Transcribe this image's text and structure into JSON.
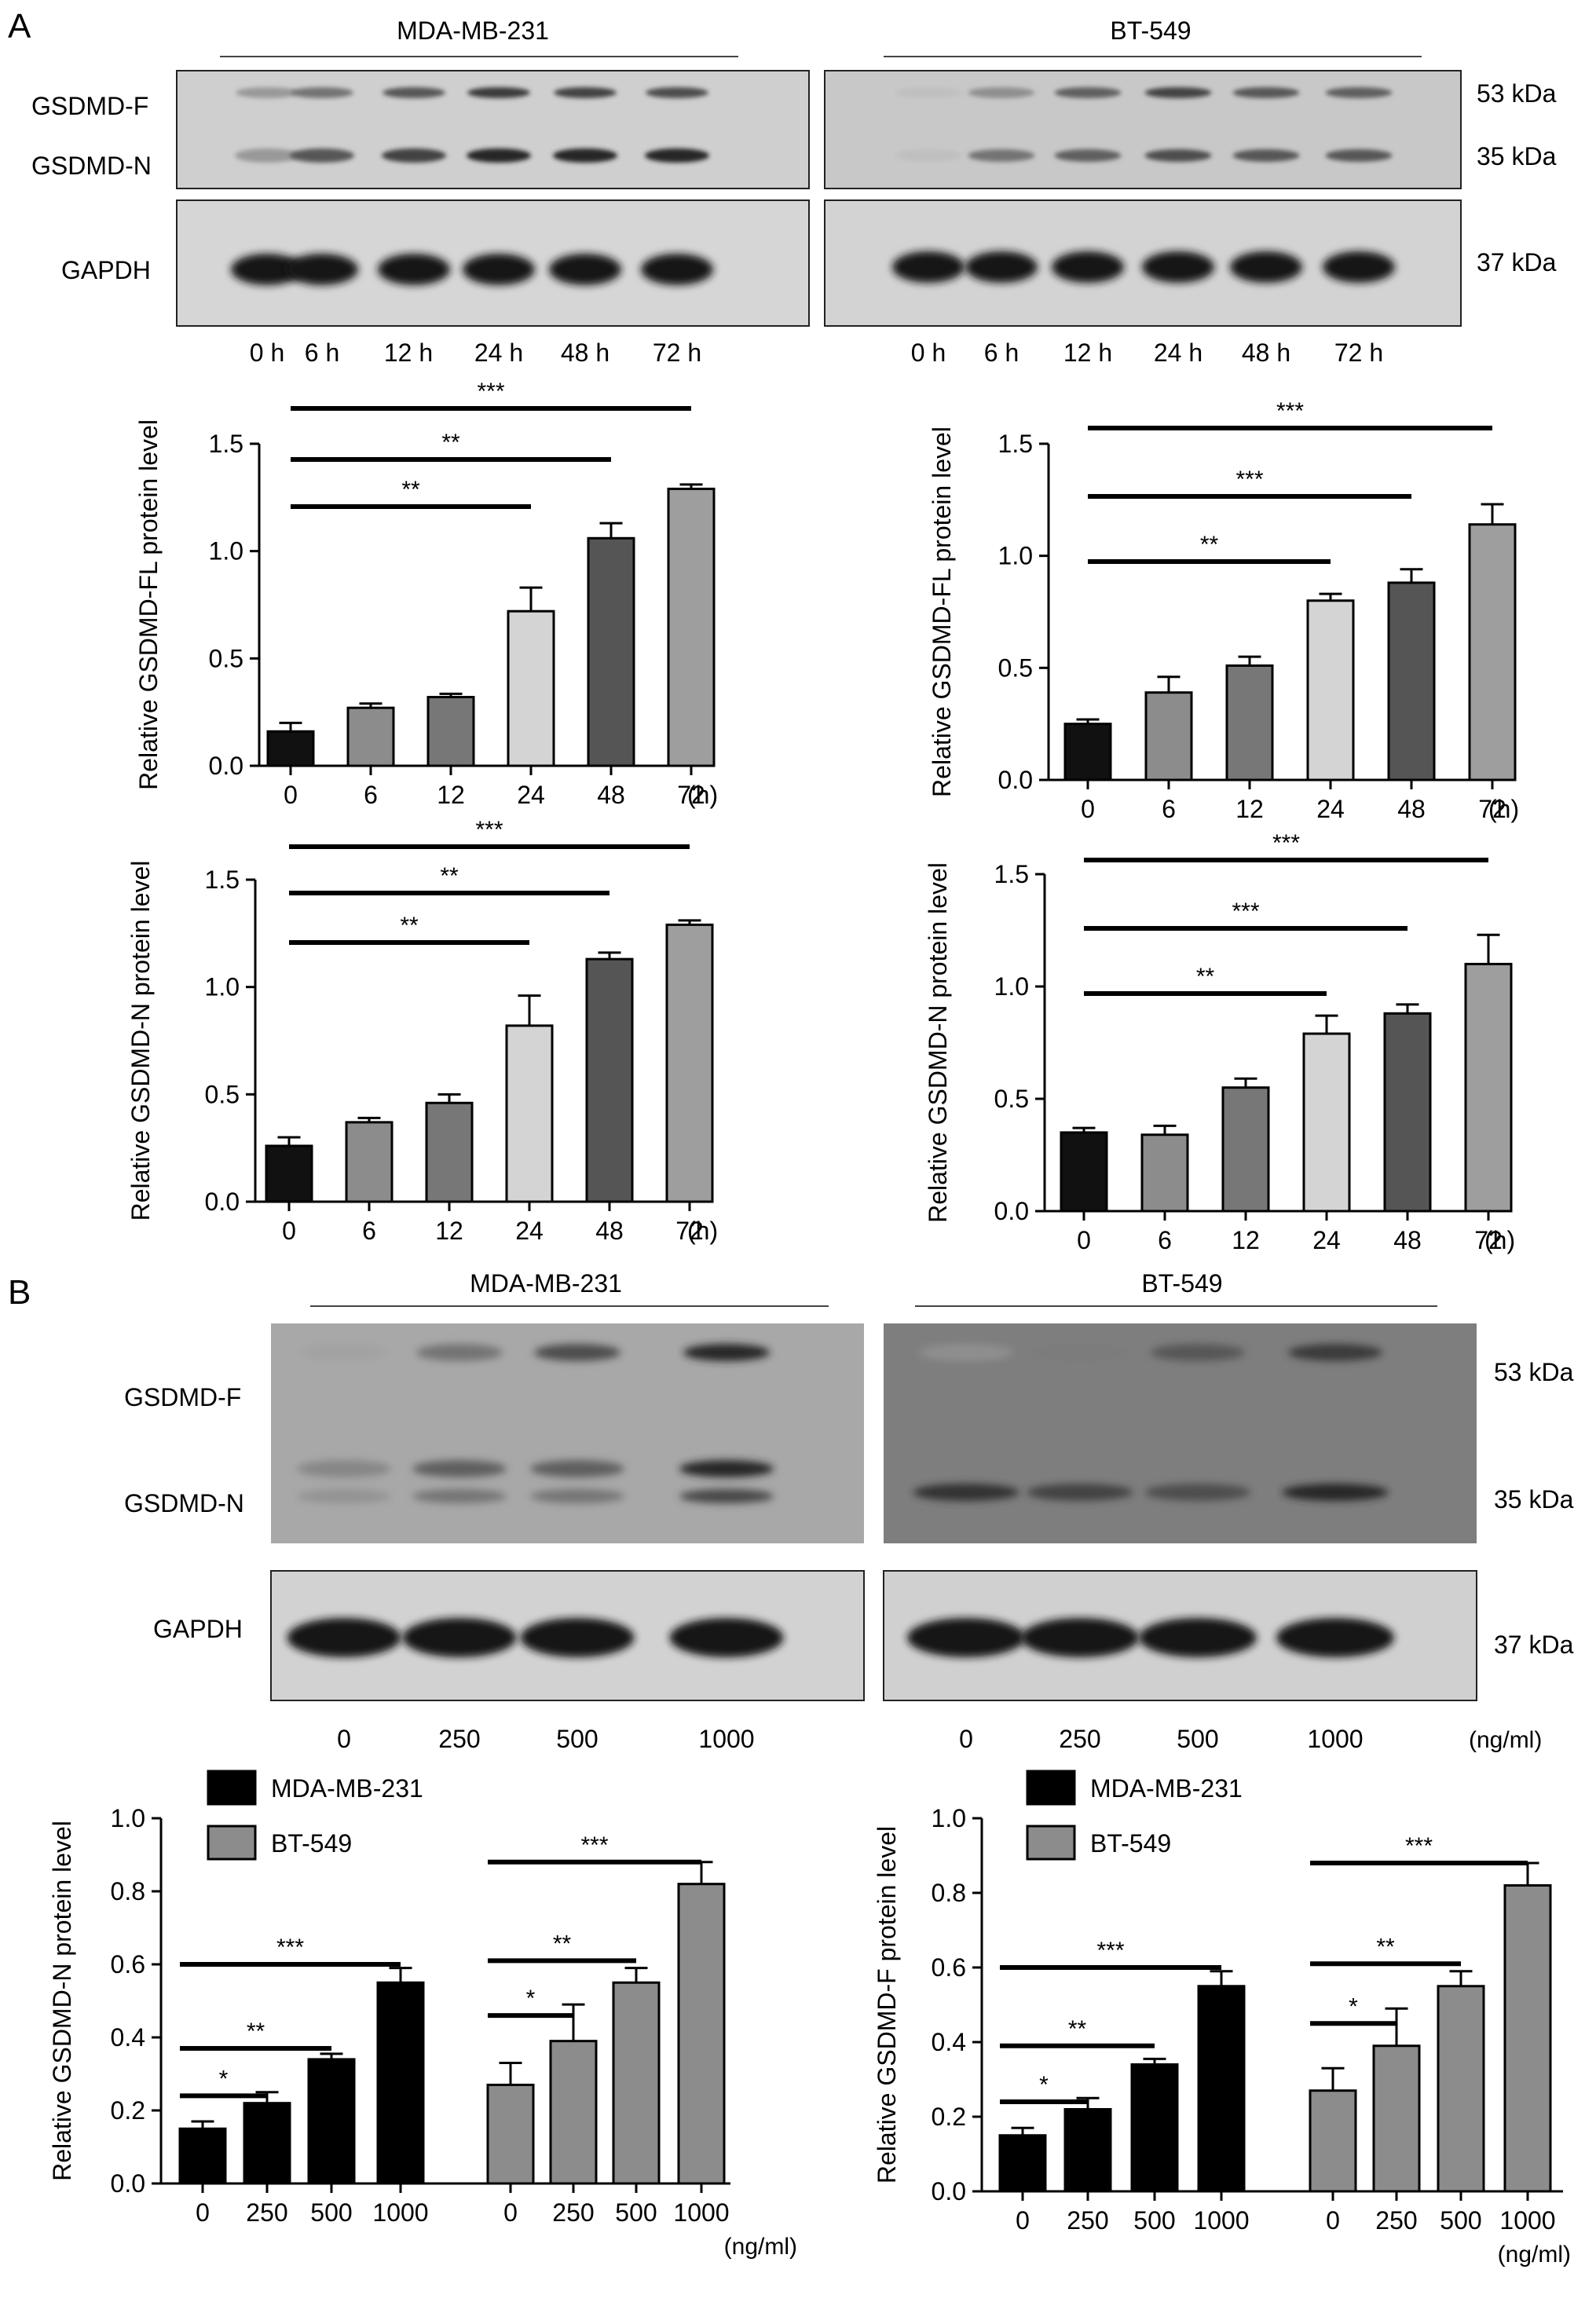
{
  "panel_a": {
    "label": "A",
    "blot": {
      "left_cell_line": "MDA-MB-231",
      "right_cell_line": "BT-549",
      "band_labels": [
        "GSDMD-F",
        "GSDMD-N",
        "GAPDH"
      ],
      "kda_labels": [
        "53 kDa",
        "35 kDa",
        "37 kDa"
      ],
      "lanes": [
        "0 h",
        "6 h",
        "12 h",
        "24 h",
        "48 h",
        "72 h"
      ],
      "left_intensity": {
        "f": [
          0.25,
          0.45,
          0.6,
          0.75,
          0.7,
          0.65
        ],
        "n": [
          0.25,
          0.6,
          0.7,
          0.85,
          0.85,
          0.85
        ],
        "gapdh": [
          0.95,
          0.95,
          0.95,
          0.95,
          0.95,
          0.95
        ]
      },
      "right_intensity": {
        "f": [
          0.05,
          0.3,
          0.55,
          0.7,
          0.6,
          0.55
        ],
        "n": [
          0.05,
          0.45,
          0.55,
          0.65,
          0.6,
          0.6
        ],
        "gapdh": [
          0.95,
          0.95,
          0.95,
          0.95,
          0.95,
          0.95
        ]
      }
    }
  },
  "panel_b": {
    "label": "B",
    "blot": {
      "left_cell_line": "MDA-MB-231",
      "right_cell_line": "BT-549",
      "band_labels": [
        "GSDMD-F",
        "GSDMD-N",
        "GAPDH"
      ],
      "kda_labels": [
        "53 kDa",
        "35 kDa",
        "37 kDa"
      ],
      "lanes": [
        "0",
        "250",
        "500",
        "1000"
      ],
      "unit_label": "(ng/ml)",
      "left_intensity": {
        "f": [
          0.2,
          0.45,
          0.65,
          0.85
        ],
        "n": [
          0.35,
          0.55,
          0.55,
          0.85
        ],
        "gapdh": [
          0.95,
          0.95,
          0.95,
          0.95
        ]
      },
      "right_intensity": {
        "f": [
          0.3,
          0.4,
          0.6,
          0.75
        ],
        "n": [
          0.8,
          0.7,
          0.65,
          0.85
        ],
        "gapdh": [
          0.95,
          0.95,
          0.95,
          0.95
        ]
      }
    }
  },
  "chart_data": [
    {
      "type": "bar",
      "ylabel": "Relative GSDMD-FL protein level",
      "categories": [
        "0",
        "6",
        "12",
        "24",
        "48",
        "72"
      ],
      "xunit": "(h)",
      "values": [
        0.16,
        0.27,
        0.32,
        0.72,
        1.06,
        1.29
      ],
      "errors": [
        0.04,
        0.02,
        0.015,
        0.11,
        0.07,
        0.02
      ],
      "ylim": [
        0,
        1.5
      ],
      "yticks": [
        "0.0",
        "0.5",
        "1.0",
        "1.5"
      ],
      "significance": [
        {
          "from": 0,
          "to": 3,
          "label": "**"
        },
        {
          "from": 0,
          "to": 4,
          "label": "**"
        },
        {
          "from": 0,
          "to": 5,
          "label": "***"
        }
      ],
      "bar_colors": [
        "#111111",
        "#8c8c8c",
        "#777777",
        "#d4d4d4",
        "#555555",
        "#9e9e9e"
      ]
    },
    {
      "type": "bar",
      "ylabel": "Relative GSDMD-FL protein level",
      "categories": [
        "0",
        "6",
        "12",
        "24",
        "48",
        "72"
      ],
      "xunit": "(h)",
      "values": [
        0.25,
        0.39,
        0.51,
        0.8,
        0.88,
        1.14
      ],
      "errors": [
        0.02,
        0.07,
        0.04,
        0.03,
        0.06,
        0.09
      ],
      "ylim": [
        0,
        1.5
      ],
      "yticks": [
        "0.0",
        "0.5",
        "1.0",
        "1.5"
      ],
      "significance": [
        {
          "from": 0,
          "to": 3,
          "label": "**"
        },
        {
          "from": 0,
          "to": 4,
          "label": "***"
        },
        {
          "from": 0,
          "to": 5,
          "label": "***"
        }
      ],
      "bar_colors": [
        "#111111",
        "#8c8c8c",
        "#777777",
        "#d4d4d4",
        "#555555",
        "#9e9e9e"
      ]
    },
    {
      "type": "bar",
      "ylabel": "Relative GSDMD-N protein level",
      "categories": [
        "0",
        "6",
        "12",
        "24",
        "48",
        "72"
      ],
      "xunit": "(h)",
      "values": [
        0.26,
        0.37,
        0.46,
        0.82,
        1.13,
        1.29
      ],
      "errors": [
        0.04,
        0.02,
        0.04,
        0.14,
        0.03,
        0.02
      ],
      "ylim": [
        0,
        1.5
      ],
      "yticks": [
        "0.0",
        "0.5",
        "1.0",
        "1.5"
      ],
      "significance": [
        {
          "from": 0,
          "to": 3,
          "label": "**"
        },
        {
          "from": 0,
          "to": 4,
          "label": "**"
        },
        {
          "from": 0,
          "to": 5,
          "label": "***"
        }
      ],
      "bar_colors": [
        "#111111",
        "#8c8c8c",
        "#777777",
        "#d4d4d4",
        "#555555",
        "#9e9e9e"
      ]
    },
    {
      "type": "bar",
      "ylabel": "Relative GSDMD-N protein level",
      "categories": [
        "0",
        "6",
        "12",
        "24",
        "48",
        "72"
      ],
      "xunit": "(h)",
      "values": [
        0.35,
        0.34,
        0.55,
        0.79,
        0.88,
        1.1
      ],
      "errors": [
        0.02,
        0.04,
        0.04,
        0.08,
        0.04,
        0.13
      ],
      "ylim": [
        0,
        1.5
      ],
      "yticks": [
        "0.0",
        "0.5",
        "1.0",
        "1.5"
      ],
      "significance": [
        {
          "from": 0,
          "to": 3,
          "label": "**"
        },
        {
          "from": 0,
          "to": 4,
          "label": "***"
        },
        {
          "from": 0,
          "to": 5,
          "label": "***"
        }
      ],
      "bar_colors": [
        "#111111",
        "#8c8c8c",
        "#777777",
        "#d4d4d4",
        "#555555",
        "#9e9e9e"
      ]
    },
    {
      "type": "bar",
      "ylabel": "Relative GSDMD-N protein level",
      "categories": [
        "0",
        "250",
        "500",
        "1000"
      ],
      "xunit": "(ng/ml)",
      "series": [
        {
          "name": "MDA-MB-231",
          "color": "#000000",
          "values": [
            0.15,
            0.22,
            0.34,
            0.55
          ],
          "errors": [
            0.02,
            0.03,
            0.015,
            0.04
          ]
        },
        {
          "name": "BT-549",
          "color": "#8c8c8c",
          "values": [
            0.27,
            0.39,
            0.55,
            0.82
          ],
          "errors": [
            0.06,
            0.1,
            0.04,
            0.06
          ]
        }
      ],
      "ylim": [
        0,
        1.0
      ],
      "yticks": [
        "0.0",
        "0.2",
        "0.4",
        "0.6",
        "0.8",
        "1.0"
      ],
      "significance": [
        {
          "series": 0,
          "from": 0,
          "to": 1,
          "label": "*"
        },
        {
          "series": 0,
          "from": 0,
          "to": 2,
          "label": "**"
        },
        {
          "series": 0,
          "from": 0,
          "to": 3,
          "label": "***"
        },
        {
          "series": 1,
          "from": 0,
          "to": 1,
          "label": "*"
        },
        {
          "series": 1,
          "from": 0,
          "to": 2,
          "label": "**"
        },
        {
          "series": 1,
          "from": 0,
          "to": 3,
          "label": "***"
        }
      ],
      "legend_position": "top-left"
    },
    {
      "type": "bar",
      "ylabel": "Relative GSDMD-F protein level",
      "categories": [
        "0",
        "250",
        "500",
        "1000"
      ],
      "xunit": "(ng/ml)",
      "series": [
        {
          "name": "MDA-MB-231",
          "color": "#000000",
          "values": [
            0.15,
            0.22,
            0.34,
            0.55
          ],
          "errors": [
            0.02,
            0.03,
            0.015,
            0.04
          ]
        },
        {
          "name": "BT-549",
          "color": "#8c8c8c",
          "values": [
            0.27,
            0.39,
            0.55,
            0.82
          ],
          "errors": [
            0.06,
            0.1,
            0.04,
            0.06
          ]
        }
      ],
      "ylim": [
        0,
        1.0
      ],
      "yticks": [
        "0.0",
        "0.2",
        "0.4",
        "0.6",
        "0.8",
        "1.0"
      ],
      "significance": [
        {
          "series": 0,
          "from": 0,
          "to": 1,
          "label": "*"
        },
        {
          "series": 0,
          "from": 0,
          "to": 2,
          "label": "**"
        },
        {
          "series": 0,
          "from": 0,
          "to": 3,
          "label": "***"
        },
        {
          "series": 1,
          "from": 0,
          "to": 1,
          "label": "*"
        },
        {
          "series": 1,
          "from": 0,
          "to": 2,
          "label": "**"
        },
        {
          "series": 1,
          "from": 0,
          "to": 3,
          "label": "***"
        }
      ],
      "legend_position": "top-left"
    }
  ]
}
